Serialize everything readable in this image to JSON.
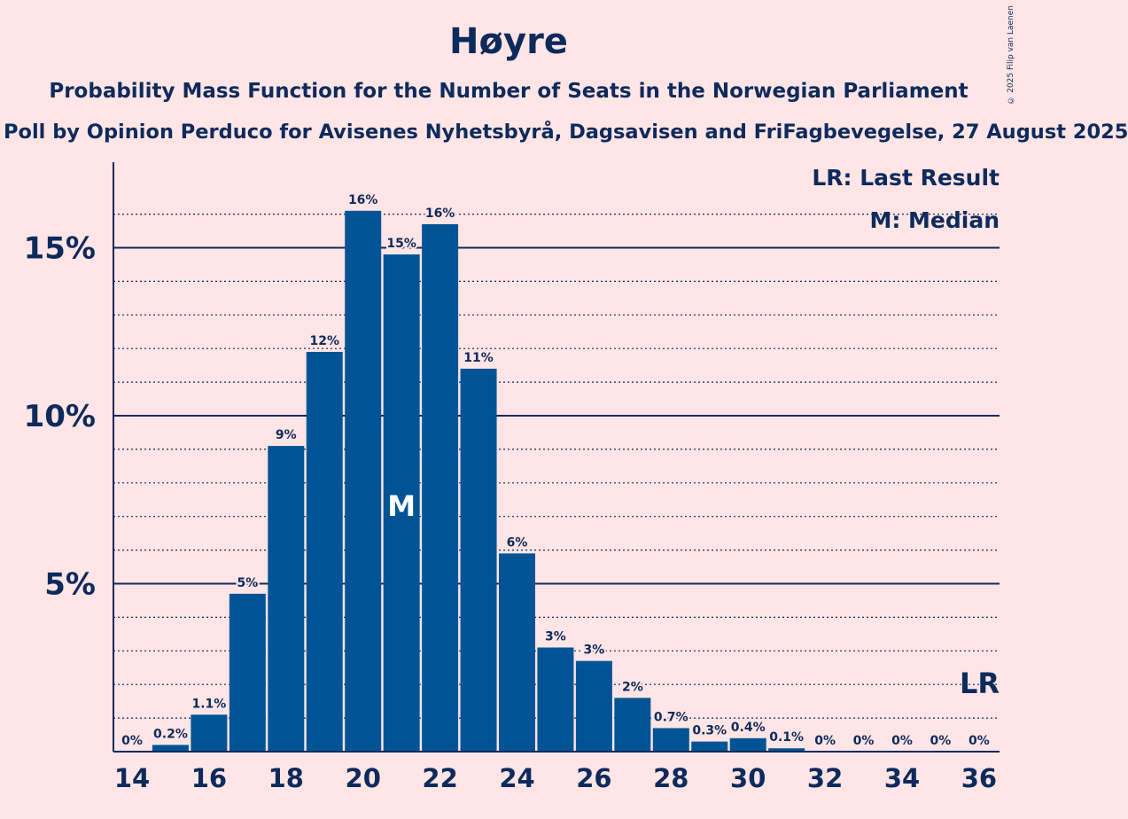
{
  "chart_data": {
    "type": "bar",
    "title": "Høyre",
    "subtitle": "Probability Mass Function for the Number of Seats in the Norwegian Parliament",
    "source": "Poll by Opinion Perduco for Avisenes Nyhetsbyrå, Dagsavisen and FriFagbevegelse, 27 August 2025",
    "copyright": "© 2025 Filip van Laenen",
    "x": [
      14,
      15,
      16,
      17,
      18,
      19,
      20,
      21,
      22,
      23,
      24,
      25,
      26,
      27,
      28,
      29,
      30,
      31,
      32,
      33,
      34,
      35,
      36
    ],
    "values": [
      0,
      0.2,
      1.1,
      4.7,
      9.1,
      11.9,
      16.1,
      14.8,
      15.7,
      11.4,
      5.9,
      3.1,
      2.7,
      1.6,
      0.7,
      0.3,
      0.4,
      0.1,
      0,
      0,
      0,
      0,
      0
    ],
    "labels": [
      "0%",
      "0.2%",
      "1.1%",
      "5%",
      "9%",
      "12%",
      "16%",
      "15%",
      "16%",
      "11%",
      "6%",
      "3%",
      "3%",
      "2%",
      "0.7%",
      "0.3%",
      "0.4%",
      "0.1%",
      "0%",
      "0%",
      "0%",
      "0%",
      "0%"
    ],
    "x_tick_labels": [
      "14",
      "16",
      "18",
      "20",
      "22",
      "24",
      "26",
      "28",
      "30",
      "32",
      "34",
      "36"
    ],
    "y_tick_labels": [
      "5%",
      "10%",
      "15%"
    ],
    "y_ticks": [
      5,
      10,
      15
    ],
    "ylim": [
      0,
      17.5
    ],
    "xlim": [
      13.5,
      36.5
    ],
    "median_seat": 21,
    "median_marker": "M",
    "last_result_seat": 36,
    "last_result_marker": "LR",
    "legend": [
      "LR: Last Result",
      "M: Median"
    ],
    "legend_position": "top-right",
    "grid": "dotted minor, solid major",
    "colors": {
      "bar": "#005496",
      "background": "#ffe5e5",
      "text": "#0d2a5c"
    }
  }
}
